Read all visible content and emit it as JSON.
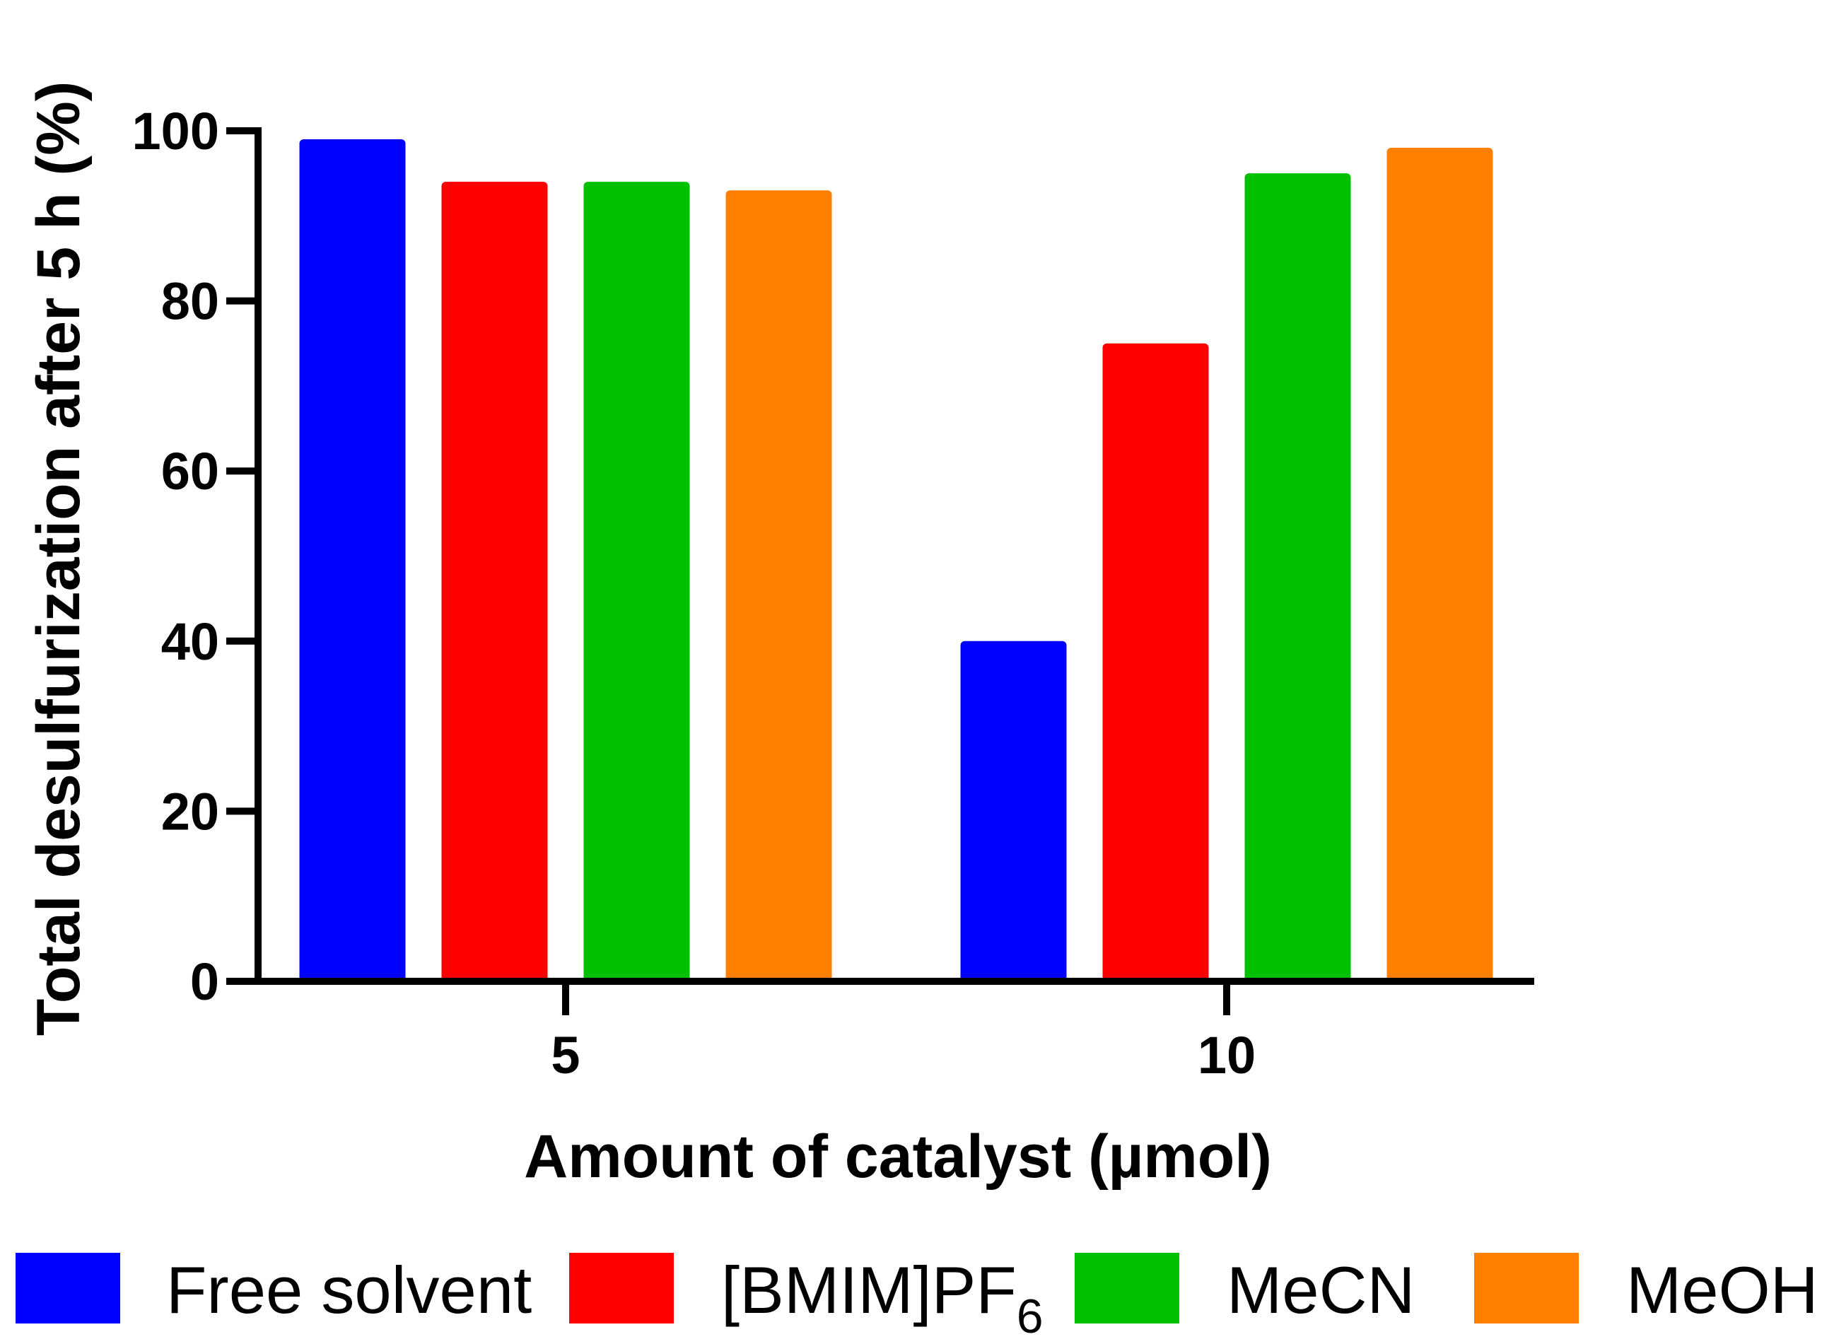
{
  "chart_data": {
    "type": "bar",
    "title": "",
    "xlabel": "Amount of catalyst (µmol)",
    "ylabel": "Total desulfurization after 5 h (%)",
    "ylim": [
      0,
      100
    ],
    "yticks": [
      0,
      20,
      40,
      60,
      80,
      100
    ],
    "categories": [
      "5",
      "10"
    ],
    "series": [
      {
        "name": "Free solvent",
        "legend_main": "Free solvent",
        "legend_sub": "",
        "color": "#0000ff",
        "values": [
          99,
          40
        ]
      },
      {
        "name": "[BMIM]PF6",
        "legend_main": "[BMIM]PF",
        "legend_sub": "6",
        "color": "#ff0000",
        "values": [
          94,
          75
        ]
      },
      {
        "name": "MeCN",
        "legend_main": "MeCN",
        "legend_sub": "",
        "color": "#00c000",
        "values": [
          94,
          95
        ]
      },
      {
        "name": "MeOH",
        "legend_main": "MeOH",
        "legend_sub": "",
        "color": "#ff8000",
        "values": [
          93,
          98
        ]
      }
    ],
    "legend_position": "bottom",
    "grid": false
  }
}
